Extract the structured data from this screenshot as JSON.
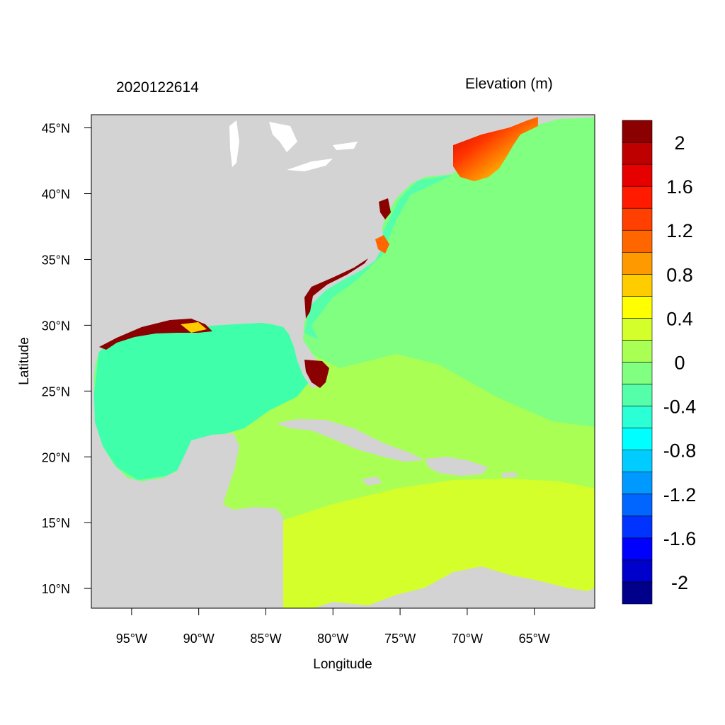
{
  "map": {
    "time_label": "2020122614",
    "variable_label": "Elevation (m)",
    "xlabel": "Longitude",
    "ylabel": "Latitude",
    "lon_range": [
      -98,
      -60.5
    ],
    "lat_range": [
      8.5,
      46
    ],
    "lon_ticks": [
      {
        "value": -95,
        "label": "95°W"
      },
      {
        "value": -90,
        "label": "90°W"
      },
      {
        "value": -85,
        "label": "85°W"
      },
      {
        "value": -80,
        "label": "80°W"
      },
      {
        "value": -75,
        "label": "75°W"
      },
      {
        "value": -70,
        "label": "70°W"
      },
      {
        "value": -65,
        "label": "65°W"
      }
    ],
    "lat_ticks": [
      {
        "value": 45,
        "label": "45°N"
      },
      {
        "value": 40,
        "label": "40°N"
      },
      {
        "value": 35,
        "label": "35°N"
      },
      {
        "value": 30,
        "label": "30°N"
      },
      {
        "value": 25,
        "label": "25°N"
      },
      {
        "value": 20,
        "label": "20°N"
      },
      {
        "value": 15,
        "label": "15°N"
      },
      {
        "value": 10,
        "label": "10°N"
      }
    ],
    "colors": {
      "land": "#d3d3d3",
      "open_ocean": "#80ff80",
      "gulf": "#40ffaa",
      "caribbean_north": "#aaff55",
      "caribbean_south": "#d5ff2a",
      "surge_max": "#8b0000"
    }
  },
  "colorbar": {
    "bins": [
      {
        "color": "#00008b"
      },
      {
        "color": "#0000cd"
      },
      {
        "color": "#0000ff"
      },
      {
        "color": "#0033ff"
      },
      {
        "color": "#0066ff"
      },
      {
        "color": "#0099ff"
      },
      {
        "color": "#00ccff"
      },
      {
        "color": "#00ffff"
      },
      {
        "color": "#2bffd5"
      },
      {
        "color": "#55ffaa"
      },
      {
        "color": "#80ff80"
      },
      {
        "color": "#aaff55"
      },
      {
        "color": "#d5ff2a"
      },
      {
        "color": "#ffff00"
      },
      {
        "color": "#ffcc00"
      },
      {
        "color": "#ff9900"
      },
      {
        "color": "#ff6600"
      },
      {
        "color": "#ff4000"
      },
      {
        "color": "#ff1a00"
      },
      {
        "color": "#e60000"
      },
      {
        "color": "#bf0000"
      },
      {
        "color": "#8b0000"
      }
    ],
    "labels": [
      {
        "value": 2,
        "text": "2"
      },
      {
        "value": 1.6,
        "text": "1.6"
      },
      {
        "value": 1.2,
        "text": "1.2"
      },
      {
        "value": 0.8,
        "text": "0.8"
      },
      {
        "value": 0.4,
        "text": "0.4"
      },
      {
        "value": 0,
        "text": "0"
      },
      {
        "value": -0.4,
        "text": "-0.4"
      },
      {
        "value": -0.8,
        "text": "-0.8"
      },
      {
        "value": -1.2,
        "text": "-1.2"
      },
      {
        "value": -1.6,
        "text": "-1.6"
      },
      {
        "value": -2,
        "text": "-2"
      }
    ]
  }
}
